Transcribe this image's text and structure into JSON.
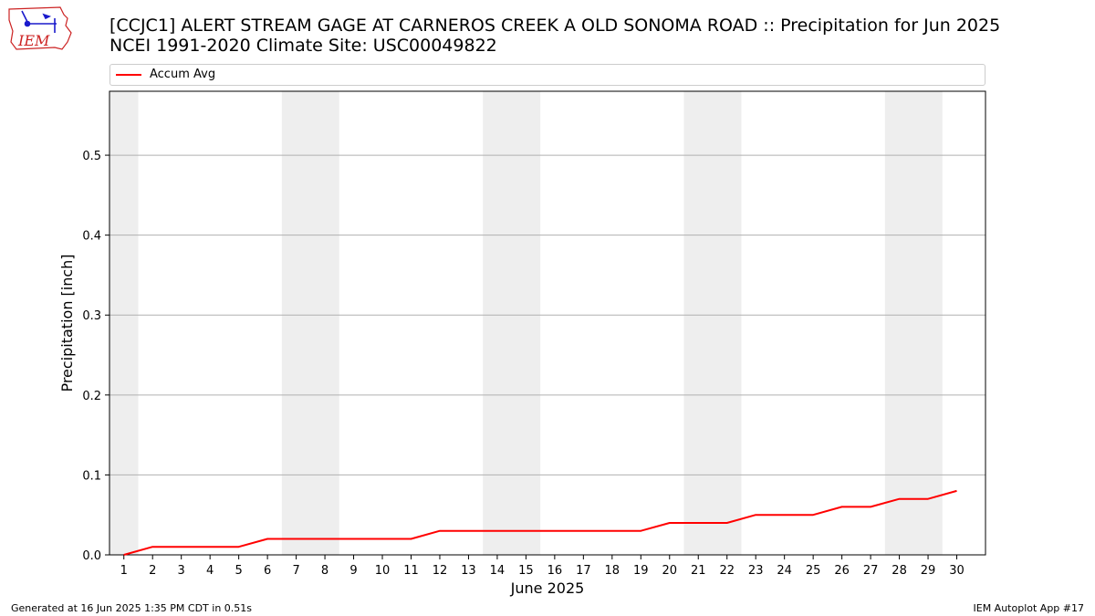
{
  "header": {
    "title_line1": "[CCJC1] ALERT STREAM GAGE  AT CARNEROS CREEK A OLD SONOMA ROAD :: Precipitation for Jun 2025",
    "title_line2": "NCEI 1991-2020 Climate Site: USC00049822"
  },
  "logo": {
    "text": "IEM"
  },
  "footer": {
    "left": "Generated at 16 Jun 2025 1:35 PM CDT in 0.51s",
    "right": "IEM Autoplot App #17"
  },
  "chart_data": {
    "type": "line",
    "xlabel": "June 2025",
    "ylabel": "Precipitation [inch]",
    "xlim": [
      0.5,
      31
    ],
    "ylim": [
      0,
      0.58
    ],
    "yticks": [
      0.0,
      0.1,
      0.2,
      0.3,
      0.4,
      0.5
    ],
    "ytick_labels": [
      "0.0",
      "0.1",
      "0.2",
      "0.3",
      "0.4",
      "0.5"
    ],
    "x": [
      1,
      2,
      3,
      4,
      5,
      6,
      7,
      8,
      9,
      10,
      11,
      12,
      13,
      14,
      15,
      16,
      17,
      18,
      19,
      20,
      21,
      22,
      23,
      24,
      25,
      26,
      27,
      28,
      29,
      30
    ],
    "xtick_labels": [
      "1",
      "2",
      "3",
      "4",
      "5",
      "6",
      "7",
      "8",
      "9",
      "10",
      "11",
      "12",
      "13",
      "14",
      "15",
      "16",
      "17",
      "18",
      "19",
      "20",
      "21",
      "22",
      "23",
      "24",
      "25",
      "26",
      "27",
      "28",
      "29",
      "30"
    ],
    "grid": "horizontal",
    "weekend_bands": [
      [
        0.5,
        1.5
      ],
      [
        6.5,
        8.5
      ],
      [
        13.5,
        15.5
      ],
      [
        20.5,
        22.5
      ],
      [
        27.5,
        29.5
      ]
    ],
    "legend_position": "top",
    "series": [
      {
        "name": "Accum Avg",
        "color": "#ff0000",
        "values": [
          0.0,
          0.01,
          0.01,
          0.01,
          0.01,
          0.02,
          0.02,
          0.02,
          0.02,
          0.02,
          0.02,
          0.03,
          0.03,
          0.03,
          0.03,
          0.03,
          0.03,
          0.03,
          0.03,
          0.04,
          0.04,
          0.04,
          0.05,
          0.05,
          0.05,
          0.06,
          0.06,
          0.07,
          0.07,
          0.08
        ]
      }
    ]
  }
}
